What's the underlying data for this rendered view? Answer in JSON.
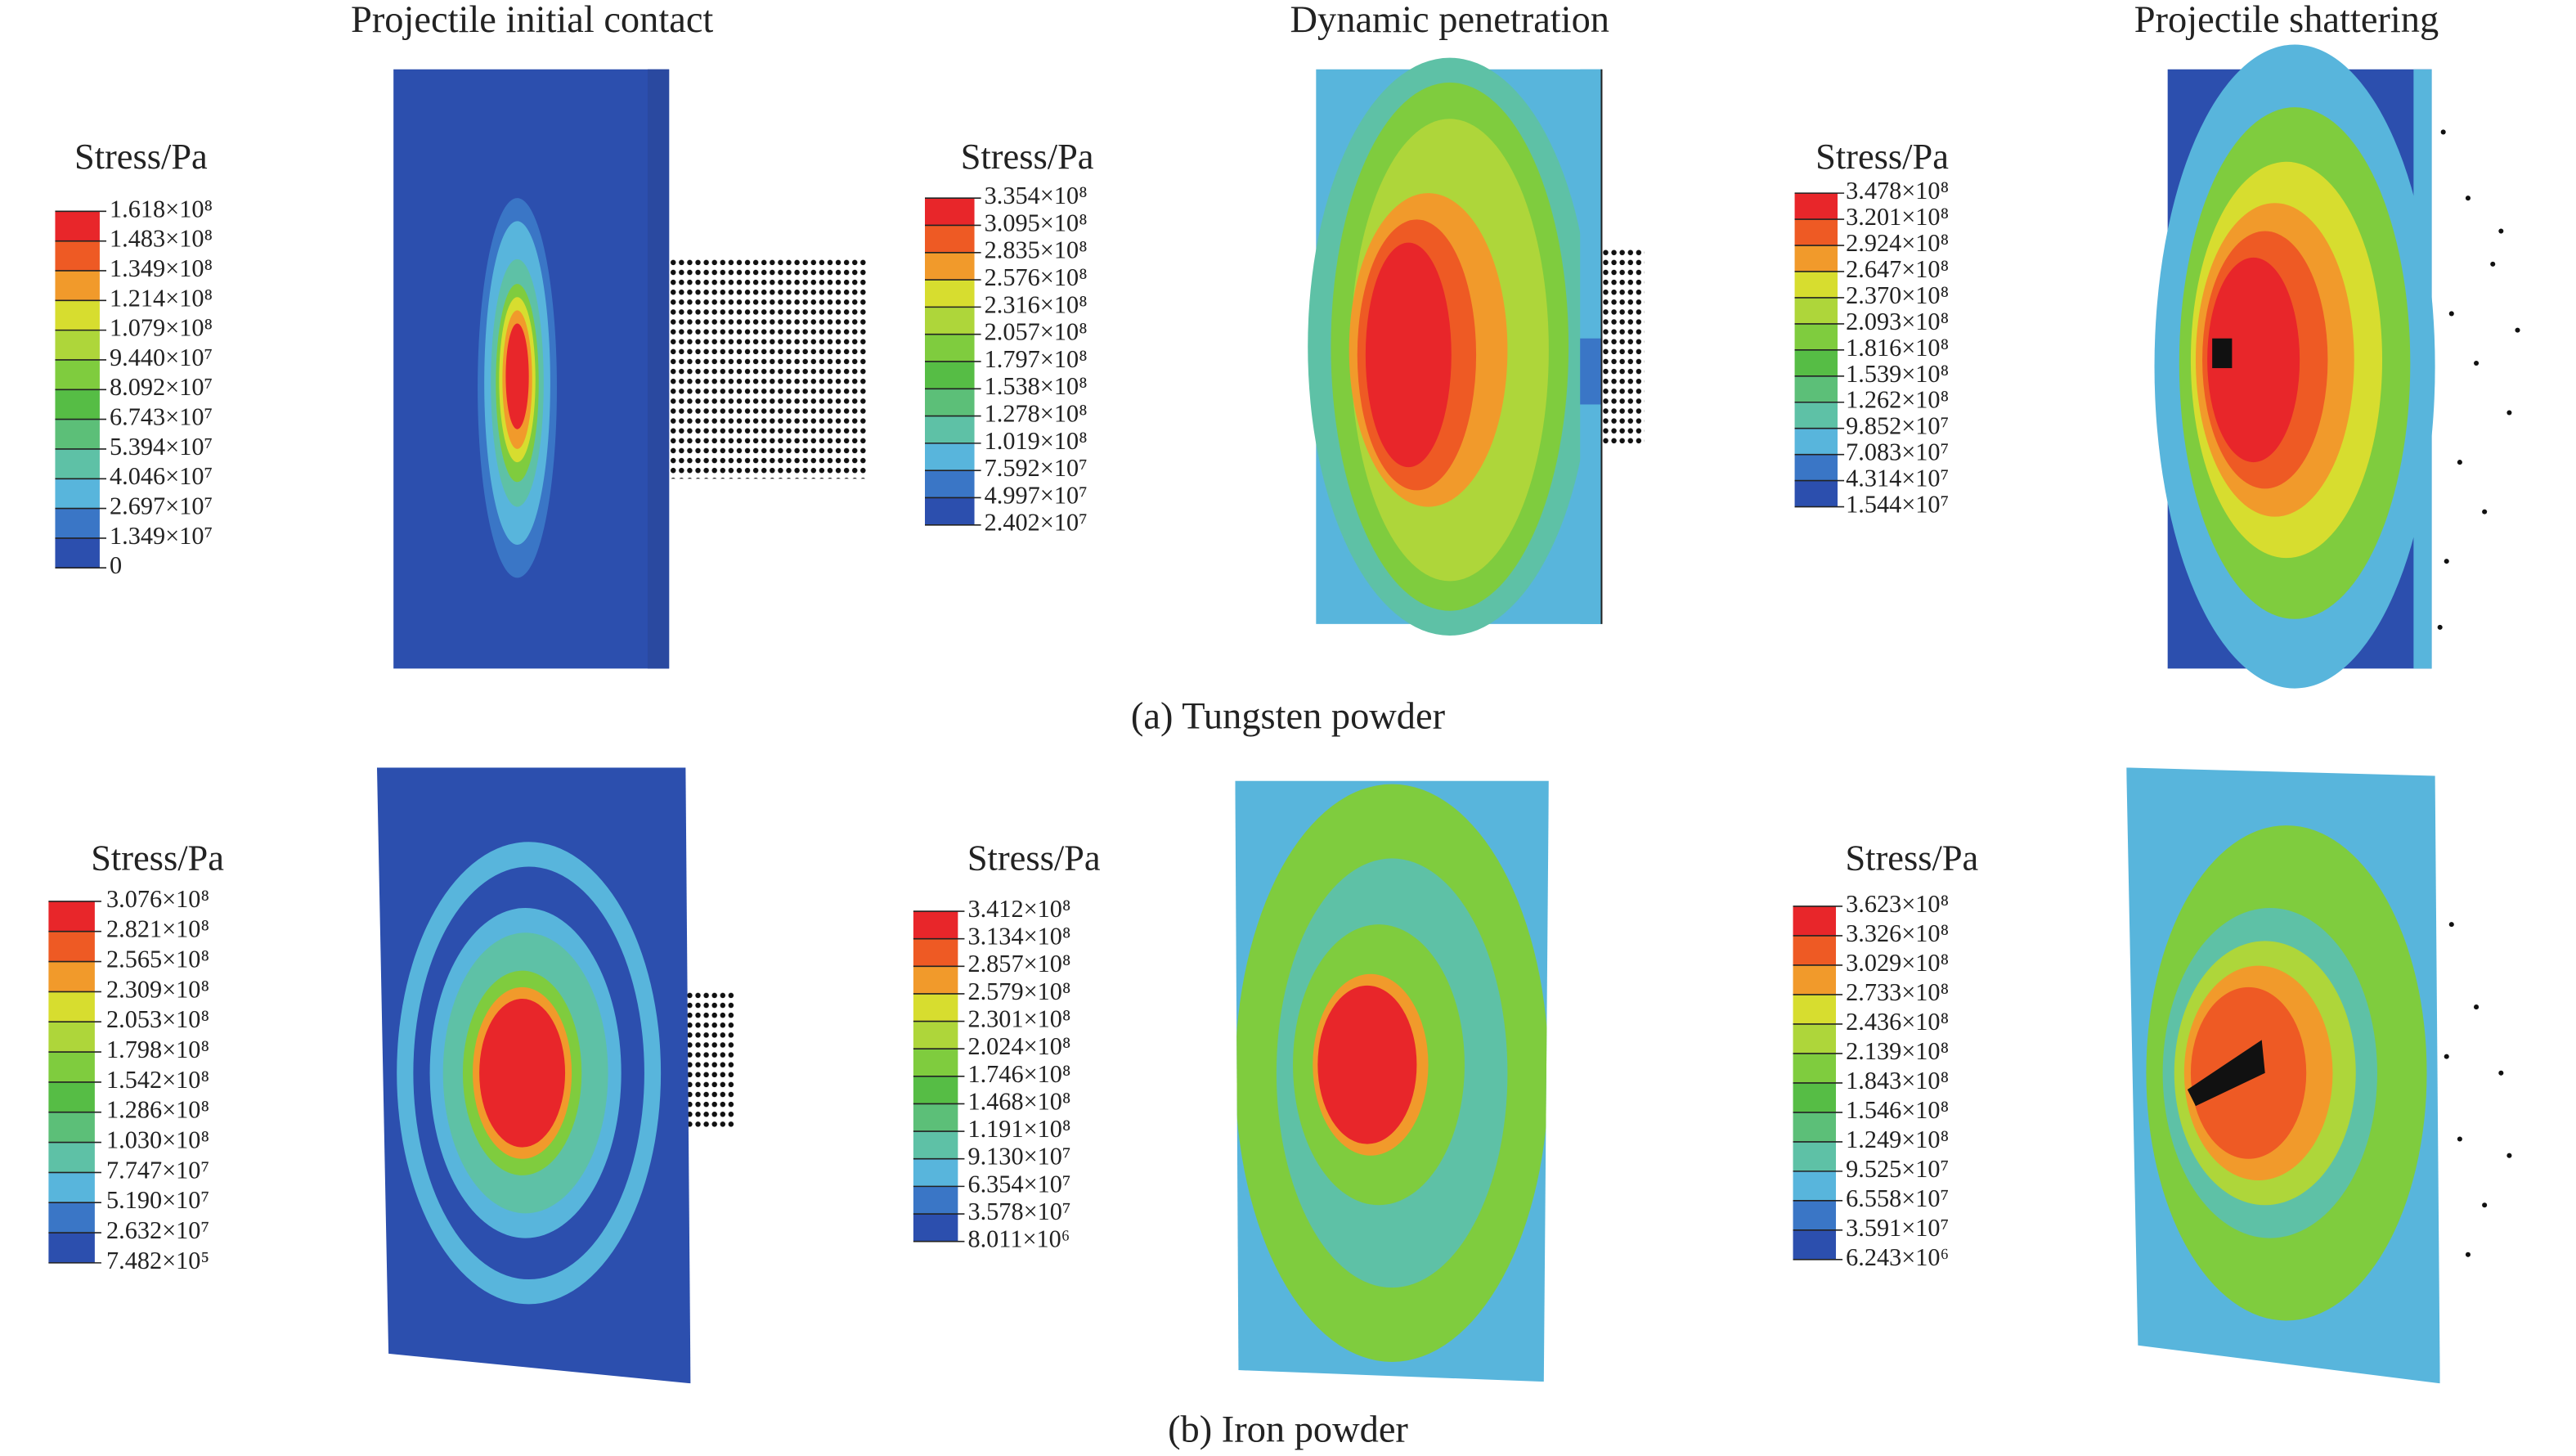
{
  "figure": {
    "columns": [
      "Projectile initial contact",
      "Dynamic penetration",
      "Projectile shattering"
    ],
    "colormap": [
      "#e8262a",
      "#ee5a24",
      "#f19a2b",
      "#d7dd2f",
      "#aed63a",
      "#7fcc3e",
      "#56bd45",
      "#5cbf78",
      "#5ec1a6",
      "#58b5dc",
      "#3a76c6",
      "#2c4fae"
    ],
    "rows": [
      {
        "caption": "(a) Tungsten powder",
        "legends": [
          {
            "title": "Stress/Pa",
            "labels": [
              "1.618×10⁸",
              "1.483×10⁸",
              "1.349×10⁸",
              "1.214×10⁸",
              "1.079×10⁸",
              "9.440×10⁷",
              "8.092×10⁷",
              "6.743×10⁷",
              "5.394×10⁷",
              "4.046×10⁷",
              "2.697×10⁷",
              "1.349×10⁷",
              "0"
            ]
          },
          {
            "title": "Stress/Pa",
            "labels": [
              "3.354×10⁸",
              "3.095×10⁸",
              "2.835×10⁸",
              "2.576×10⁸",
              "2.316×10⁸",
              "2.057×10⁸",
              "1.797×10⁸",
              "1.538×10⁸",
              "1.278×10⁸",
              "1.019×10⁸",
              "7.592×10⁷",
              "4.997×10⁷",
              "2.402×10⁷"
            ]
          },
          {
            "title": "Stress/Pa",
            "labels": [
              "3.478×10⁸",
              "3.201×10⁸",
              "2.924×10⁸",
              "2.647×10⁸",
              "2.370×10⁸",
              "2.093×10⁸",
              "1.816×10⁸",
              "1.539×10⁸",
              "1.262×10⁸",
              "9.852×10⁷",
              "7.083×10⁷",
              "4.314×10⁷",
              "1.544×10⁷"
            ]
          }
        ]
      },
      {
        "caption": "(b) Iron powder",
        "legends": [
          {
            "title": "Stress/Pa",
            "labels": [
              "3.076×10⁸",
              "2.821×10⁸",
              "2.565×10⁸",
              "2.309×10⁸",
              "2.053×10⁸",
              "1.798×10⁸",
              "1.542×10⁸",
              "1.286×10⁸",
              "1.030×10⁸",
              "7.747×10⁷",
              "5.190×10⁷",
              "2.632×10⁷",
              "7.482×10⁵"
            ]
          },
          {
            "title": "Stress/Pa",
            "labels": [
              "3.412×10⁸",
              "3.134×10⁸",
              "2.857×10⁸",
              "2.579×10⁸",
              "2.301×10⁸",
              "2.024×10⁸",
              "1.746×10⁸",
              "1.468×10⁸",
              "1.191×10⁸",
              "9.130×10⁷",
              "6.354×10⁷",
              "3.578×10⁷",
              "8.011×10⁶"
            ]
          },
          {
            "title": "Stress/Pa",
            "labels": [
              "3.623×10⁸",
              "3.326×10⁸",
              "3.029×10⁸",
              "2.733×10⁸",
              "2.436×10⁸",
              "2.139×10⁸",
              "1.843×10⁸",
              "1.546×10⁸",
              "1.249×10⁸",
              "9.525×10⁷",
              "6.558×10⁷",
              "3.591×10⁷",
              "6.243×10⁶"
            ]
          }
        ]
      }
    ]
  }
}
